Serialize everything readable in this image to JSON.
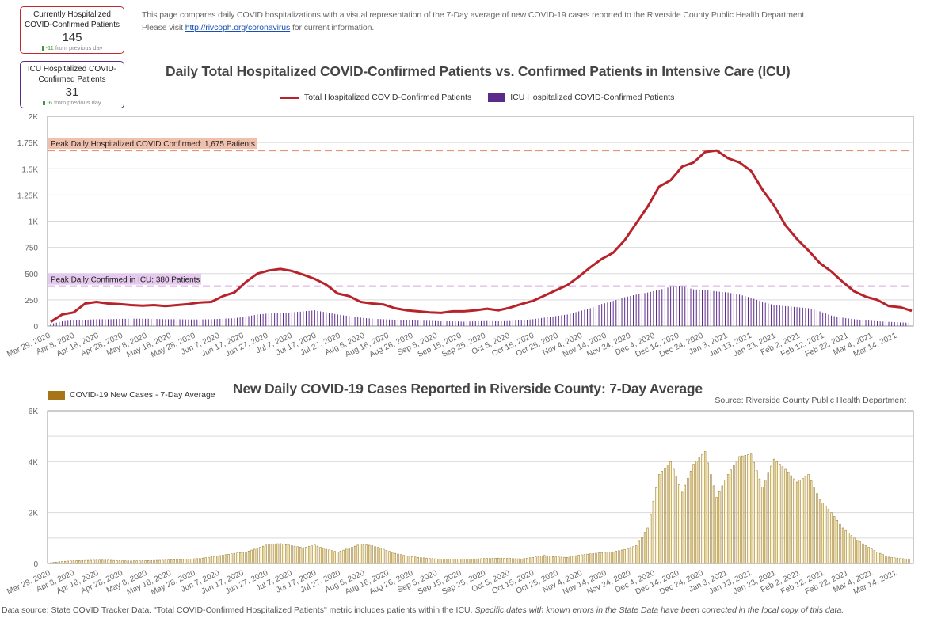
{
  "kpis": [
    {
      "label": "Currently Hospitalized COVID-Confirmed Patients",
      "value": "145",
      "change": "-11",
      "change_suffix": "from previous day"
    },
    {
      "label": "ICU Hospitalized COVID-Confirmed Patients",
      "value": "31",
      "change": "-6",
      "change_suffix": "from previous day"
    }
  ],
  "intro": {
    "line1": "This page compares daily COVID hospitalizations with a visual representation of the 7-Day average of new COVID-19 cases reported to the Riverside County Public Health Department.",
    "line2_prefix": "Please visit ",
    "link": "http://rivcoph.org/coronavirus",
    "line2_suffix": " for current information."
  },
  "source_note": "Source: Riverside County Public Health Department",
  "footer": {
    "text": "Data source: State COVID Tracker Data. \"Total COVID-Confirmed Hospitalized Patients\" metric includes patients within the ICU. ",
    "italic": "Specific dates with known errors in the State Data have been corrected in the local copy of this data."
  },
  "colors": {
    "hosp": "#b8232b",
    "icu": "#5c2a8a",
    "cases_fill": "#fff3b8",
    "cases_stroke": "#8a6a2a",
    "cases_legend": "#a8741a",
    "peak_hosp": "#e0967a",
    "peak_hosp_bg": "#f0c0ac",
    "peak_icu": "#d7a8e0",
    "peak_icu_bg": "#e6c9ee"
  },
  "chart_data": [
    {
      "type": "line",
      "title": "Daily Total Hospitalized COVID-Confirmed Patients vs. Confirmed Patients in Intensive Care (ICU)",
      "xlabel": "",
      "ylabel": "",
      "ylim": [
        0,
        2000
      ],
      "yticks": [
        "0",
        "250",
        "500",
        "750",
        "1K",
        "1.25K",
        "1.5K",
        "1.75K",
        "2K"
      ],
      "ytick_values": [
        0,
        250,
        500,
        750,
        1000,
        1250,
        1500,
        1750,
        2000
      ],
      "x_tick_labels": [
        "Mar 29, 2020",
        "Apr 8, 2020",
        "Apr 18, 2020",
        "Apr 28, 2020",
        "May 8, 2020",
        "May 18, 2020",
        "May 28, 2020",
        "Jun 7, 2020",
        "Jun 17, 2020",
        "Jun 27, 2020",
        "Jul 7, 2020",
        "Jul 17, 2020",
        "Jul 27, 2020",
        "Aug 6, 2020",
        "Aug 16, 2020",
        "Aug 26, 2020",
        "Sep 5, 2020",
        "Sep 15, 2020",
        "Sep 25, 2020",
        "Oct 5, 2020",
        "Oct 15, 2020",
        "Oct 25, 2020",
        "Nov 4, 2020",
        "Nov 14, 2020",
        "Nov 24, 2020",
        "Dec 4, 2020",
        "Dec 14, 2020",
        "Dec 24, 2020",
        "Jan 3, 2021",
        "Jan 13, 2021",
        "Jan 23, 2021",
        "Feb 2, 2021",
        "Feb 12, 2021",
        "Feb 22, 2021",
        "Mar 4, 2021",
        "Mar 14, 2021"
      ],
      "x_step_days": 5,
      "grid": true,
      "legend": "top-center",
      "series": [
        {
          "name": "Total Hospitalized COVID-Confirmed Patients",
          "type": "line",
          "values": [
            40,
            110,
            130,
            215,
            230,
            215,
            210,
            200,
            195,
            200,
            190,
            200,
            210,
            225,
            230,
            285,
            320,
            420,
            500,
            530,
            545,
            525,
            490,
            450,
            395,
            310,
            285,
            230,
            215,
            205,
            170,
            150,
            140,
            130,
            125,
            140,
            140,
            150,
            165,
            150,
            175,
            210,
            240,
            290,
            340,
            390,
            470,
            560,
            640,
            700,
            820,
            980,
            1140,
            1330,
            1390,
            1520,
            1560,
            1660,
            1675,
            1600,
            1560,
            1480,
            1300,
            1150,
            960,
            830,
            720,
            600,
            520,
            420,
            330,
            280,
            250,
            190,
            180,
            145
          ]
        },
        {
          "name": "ICU Hospitalized COVID-Confirmed Patients",
          "type": "bar",
          "values": [
            20,
            45,
            55,
            60,
            65,
            65,
            68,
            70,
            70,
            68,
            65,
            65,
            63,
            63,
            65,
            70,
            75,
            90,
            110,
            120,
            125,
            130,
            140,
            150,
            130,
            110,
            95,
            80,
            70,
            65,
            60,
            55,
            52,
            50,
            45,
            45,
            42,
            45,
            48,
            45,
            48,
            55,
            65,
            80,
            95,
            110,
            140,
            170,
            210,
            240,
            275,
            300,
            320,
            345,
            375,
            380,
            350,
            345,
            330,
            320,
            300,
            270,
            230,
            200,
            190,
            180,
            170,
            140,
            100,
            80,
            65,
            55,
            45,
            40,
            35,
            31
          ]
        }
      ],
      "annotations": [
        {
          "label": "Peak Daily Hospitalized COVID Confirmed: 1,675 Patients",
          "y": 1675
        },
        {
          "label": "Peak Daily Confirmed in ICU: 380 Patients",
          "y": 380
        }
      ]
    },
    {
      "type": "bar",
      "title": "New Daily COVID-19 Cases Reported in Riverside County: 7-Day Average",
      "xlabel": "",
      "ylabel": "",
      "ylim": [
        0,
        6000
      ],
      "yticks": [
        "0",
        "2K",
        "4K",
        "6K"
      ],
      "ytick_values": [
        0,
        2000,
        4000,
        6000
      ],
      "grid": true,
      "legend": "top-left",
      "series": [
        {
          "name": "COVID-19 New Cases - 7-Day Average",
          "values": [
            30,
            80,
            110,
            120,
            130,
            130,
            110,
            100,
            110,
            120,
            130,
            150,
            170,
            200,
            260,
            330,
            400,
            450,
            600,
            760,
            780,
            700,
            620,
            720,
            560,
            450,
            600,
            760,
            700,
            560,
            400,
            300,
            240,
            200,
            170,
            160,
            170,
            180,
            200,
            210,
            200,
            180,
            240,
            320,
            260,
            240,
            330,
            380,
            430,
            460,
            550,
            700,
            1400,
            3500,
            4000,
            2800,
            3900,
            4400,
            2600,
            3500,
            4200,
            4300,
            3000,
            4100,
            3700,
            3200,
            3500,
            2500,
            2000,
            1400,
            1000,
            700,
            450,
            250,
            200,
            150
          ]
        }
      ]
    }
  ]
}
